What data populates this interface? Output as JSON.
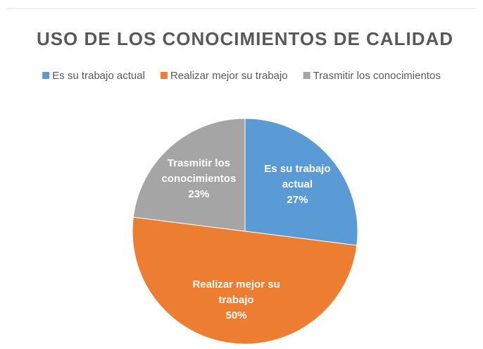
{
  "chart_data": {
    "type": "pie",
    "title": "USO DE LOS CONOCIMIENTOS DE CALIDAD",
    "categories": [
      "Es su trabajo actual",
      "Realizar mejor su trabajo",
      "Trasmitir los conocimientos"
    ],
    "values": [
      27,
      50,
      23
    ],
    "value_labels": [
      "27%",
      "50%",
      "23%"
    ],
    "colors": [
      "#5b9bd5",
      "#ed7d31",
      "#a5a5a5"
    ],
    "legend": "top"
  }
}
